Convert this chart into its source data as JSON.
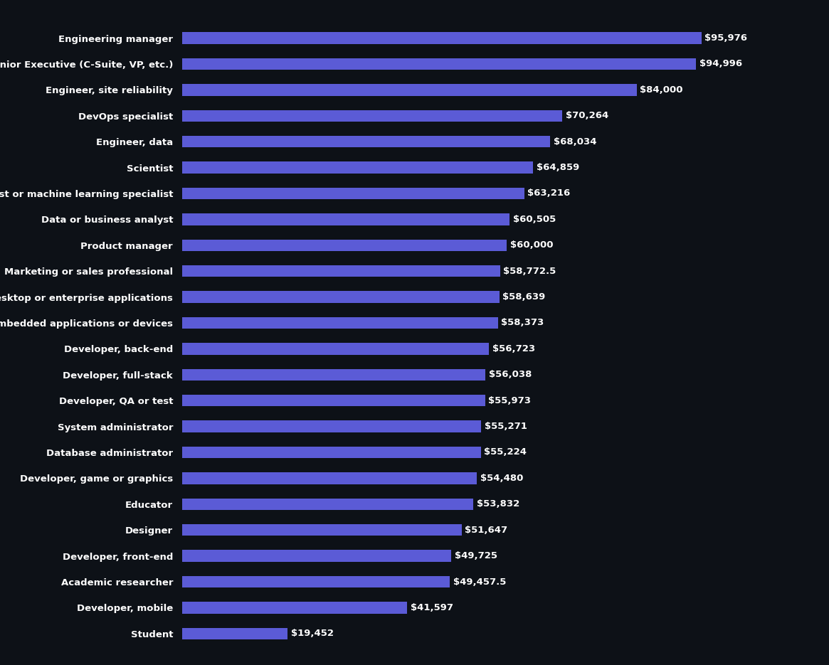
{
  "categories": [
    "Engineering manager",
    "Senior Executive (C-Suite, VP, etc.)",
    "Engineer, site reliability",
    "DevOps specialist",
    "Engineer, data",
    "Scientist",
    "Data scientist or machine learning specialist",
    "Data or business analyst",
    "Product manager",
    "Marketing or sales professional",
    "Developer, desktop or enterprise applications",
    "Developer, embedded applications or devices",
    "Developer, back-end",
    "Developer, full-stack",
    "Developer, QA or test",
    "System administrator",
    "Database administrator",
    "Developer, game or graphics",
    "Educator",
    "Designer",
    "Developer, front-end",
    "Academic researcher",
    "Developer, mobile",
    "Student"
  ],
  "values": [
    95976,
    94996,
    84000,
    70264,
    68034,
    64859,
    63216,
    60505,
    60000,
    58772.5,
    58639,
    58373,
    56723,
    56038,
    55973,
    55271,
    55224,
    54480,
    53832,
    51647,
    49725,
    49457.5,
    41597,
    19452
  ],
  "bar_color": "#5b5bd6",
  "background_color": "#0d1117",
  "text_color": "#ffffff",
  "value_labels": [
    "$95,976",
    "$94,996",
    "$84,000",
    "$70,264",
    "$68,034",
    "$64,859",
    "$63,216",
    "$60,505",
    "$60,000",
    "$58,772.5",
    "$58,639",
    "$58,373",
    "$56,723",
    "$56,038",
    "$55,973",
    "$55,271",
    "$55,224",
    "$54,480",
    "$53,832",
    "$51,647",
    "$49,725",
    "$49,457.5",
    "$41,597",
    "$19,452"
  ],
  "xlim": [
    0,
    115000
  ],
  "bar_height": 0.45,
  "label_fontsize": 9.5,
  "value_fontsize": 9.5,
  "background_color_dark": "#0d1117"
}
